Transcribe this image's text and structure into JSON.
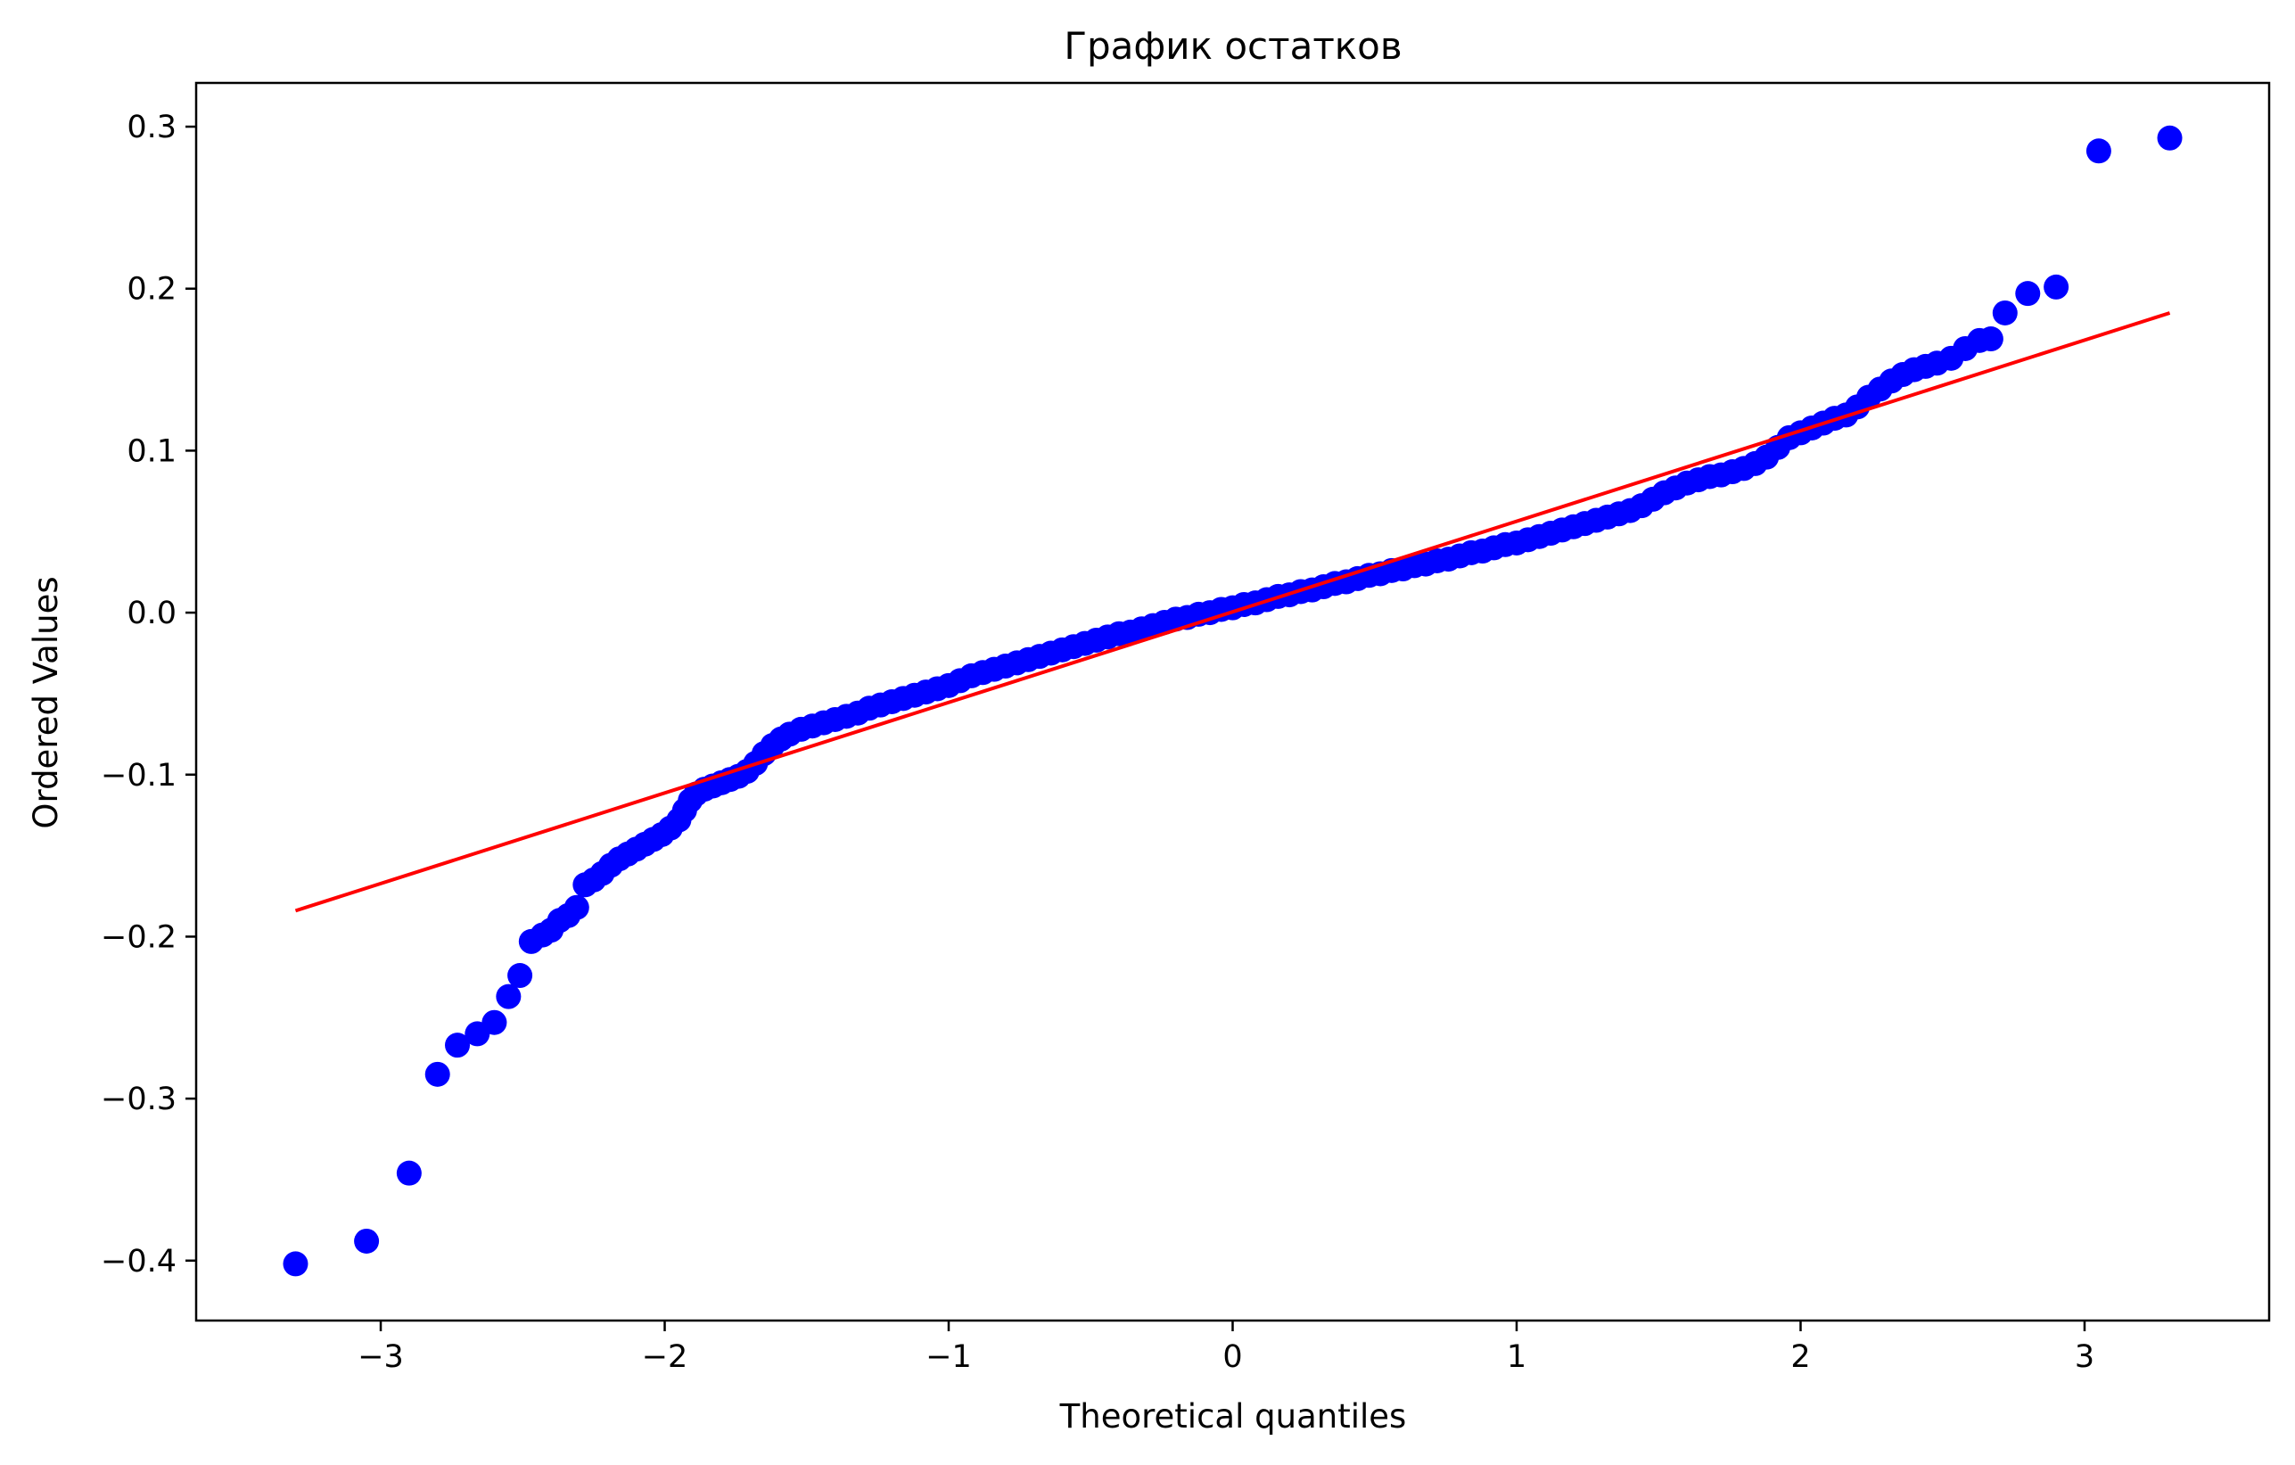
{
  "chart_data": {
    "type": "scatter",
    "title": "График остатков",
    "xlabel": "Theoretical quantiles",
    "ylabel": "Ordered Values",
    "xlim": [
      -3.65,
      3.65
    ],
    "ylim": [
      -0.437,
      0.327
    ],
    "xticks": [
      -3,
      -2,
      -1,
      0,
      1,
      2,
      3
    ],
    "xtick_labels": [
      "−3",
      "−2",
      "−1",
      "0",
      "1",
      "2",
      "3"
    ],
    "yticks": [
      -0.4,
      -0.3,
      -0.2,
      -0.1,
      0.0,
      0.1,
      0.2,
      0.3
    ],
    "ytick_labels": [
      "−0.4",
      "−0.3",
      "−0.2",
      "−0.1",
      "0.0",
      "0.1",
      "0.2",
      "0.3"
    ],
    "grid": false,
    "series": [
      {
        "kind": "points",
        "color": "#0000ff",
        "points": [
          [
            -3.3,
            -0.402
          ],
          [
            -3.05,
            -0.388
          ],
          [
            -2.9,
            -0.346
          ],
          [
            -2.8,
            -0.285
          ],
          [
            -2.73,
            -0.267
          ],
          [
            -2.66,
            -0.26
          ],
          [
            -2.6,
            -0.253
          ],
          [
            -2.55,
            -0.237
          ],
          [
            -2.51,
            -0.224
          ],
          [
            -2.47,
            -0.203
          ],
          [
            -2.43,
            -0.199
          ],
          [
            -2.4,
            -0.196
          ],
          [
            -2.37,
            -0.19
          ],
          [
            -2.34,
            -0.187
          ],
          [
            -2.31,
            -0.182
          ],
          [
            -2.28,
            -0.168
          ],
          [
            -2.25,
            -0.165
          ],
          [
            -2.22,
            -0.161
          ],
          [
            -2.19,
            -0.156
          ],
          [
            -2.16,
            -0.152
          ],
          [
            -2.13,
            -0.149
          ],
          [
            -2.1,
            -0.146
          ],
          [
            -2.07,
            -0.143
          ],
          [
            -2.04,
            -0.14
          ],
          [
            -2.01,
            -0.137
          ],
          [
            -1.98,
            -0.133
          ],
          [
            -1.95,
            -0.128
          ],
          [
            -1.93,
            -0.122
          ],
          [
            -1.91,
            -0.116
          ],
          [
            -1.89,
            -0.112
          ],
          [
            -1.86,
            -0.109
          ],
          [
            -1.83,
            -0.107
          ],
          [
            -1.8,
            -0.105
          ],
          [
            -1.77,
            -0.103
          ],
          [
            -1.74,
            -0.101
          ],
          [
            -1.71,
            -0.098
          ],
          [
            -1.68,
            -0.093
          ],
          [
            -1.65,
            -0.087
          ],
          [
            -1.62,
            -0.082
          ],
          [
            -1.59,
            -0.078
          ],
          [
            -1.56,
            -0.075
          ],
          [
            -1.52,
            -0.072
          ],
          [
            -1.48,
            -0.07
          ],
          [
            -1.44,
            -0.068
          ],
          [
            -1.4,
            -0.066
          ],
          [
            -1.36,
            -0.064
          ],
          [
            -1.32,
            -0.062
          ],
          [
            -1.28,
            -0.059
          ],
          [
            -1.24,
            -0.057
          ],
          [
            -1.2,
            -0.055
          ],
          [
            -1.16,
            -0.053
          ],
          [
            -1.12,
            -0.051
          ],
          [
            -1.08,
            -0.049
          ],
          [
            -1.04,
            -0.047
          ],
          [
            -1.0,
            -0.045
          ],
          [
            -0.96,
            -0.042
          ],
          [
            -0.92,
            -0.039
          ],
          [
            -0.88,
            -0.037
          ],
          [
            -0.84,
            -0.035
          ],
          [
            -0.8,
            -0.033
          ],
          [
            -0.76,
            -0.031
          ],
          [
            -0.72,
            -0.029
          ],
          [
            -0.68,
            -0.027
          ],
          [
            -0.64,
            -0.025
          ],
          [
            -0.6,
            -0.023
          ],
          [
            -0.56,
            -0.021
          ],
          [
            -0.52,
            -0.019
          ],
          [
            -0.48,
            -0.017
          ],
          [
            -0.44,
            -0.015
          ],
          [
            -0.4,
            -0.013
          ],
          [
            -0.36,
            -0.012
          ],
          [
            -0.32,
            -0.01
          ],
          [
            -0.28,
            -0.008
          ],
          [
            -0.24,
            -0.006
          ],
          [
            -0.2,
            -0.004
          ],
          [
            -0.16,
            -0.003
          ],
          [
            -0.12,
            -0.001
          ],
          [
            -0.08,
            0.0
          ],
          [
            -0.04,
            0.002
          ],
          [
            0.0,
            0.003
          ],
          [
            0.04,
            0.005
          ],
          [
            0.08,
            0.006
          ],
          [
            0.12,
            0.008
          ],
          [
            0.16,
            0.01
          ],
          [
            0.2,
            0.011
          ],
          [
            0.24,
            0.013
          ],
          [
            0.28,
            0.014
          ],
          [
            0.32,
            0.016
          ],
          [
            0.36,
            0.018
          ],
          [
            0.4,
            0.019
          ],
          [
            0.44,
            0.021
          ],
          [
            0.48,
            0.023
          ],
          [
            0.52,
            0.024
          ],
          [
            0.56,
            0.026
          ],
          [
            0.6,
            0.027
          ],
          [
            0.64,
            0.029
          ],
          [
            0.68,
            0.03
          ],
          [
            0.72,
            0.032
          ],
          [
            0.76,
            0.033
          ],
          [
            0.8,
            0.035
          ],
          [
            0.84,
            0.037
          ],
          [
            0.88,
            0.038
          ],
          [
            0.92,
            0.04
          ],
          [
            0.96,
            0.042
          ],
          [
            1.0,
            0.043
          ],
          [
            1.04,
            0.045
          ],
          [
            1.08,
            0.047
          ],
          [
            1.12,
            0.049
          ],
          [
            1.16,
            0.051
          ],
          [
            1.2,
            0.053
          ],
          [
            1.24,
            0.055
          ],
          [
            1.28,
            0.057
          ],
          [
            1.32,
            0.059
          ],
          [
            1.36,
            0.061
          ],
          [
            1.4,
            0.063
          ],
          [
            1.44,
            0.066
          ],
          [
            1.48,
            0.07
          ],
          [
            1.52,
            0.074
          ],
          [
            1.56,
            0.077
          ],
          [
            1.6,
            0.08
          ],
          [
            1.64,
            0.082
          ],
          [
            1.68,
            0.084
          ],
          [
            1.72,
            0.085
          ],
          [
            1.76,
            0.087
          ],
          [
            1.8,
            0.089
          ],
          [
            1.84,
            0.092
          ],
          [
            1.88,
            0.096
          ],
          [
            1.92,
            0.102
          ],
          [
            1.96,
            0.108
          ],
          [
            2.0,
            0.111
          ],
          [
            2.04,
            0.114
          ],
          [
            2.08,
            0.117
          ],
          [
            2.12,
            0.12
          ],
          [
            2.16,
            0.122
          ],
          [
            2.2,
            0.127
          ],
          [
            2.24,
            0.133
          ],
          [
            2.28,
            0.138
          ],
          [
            2.32,
            0.143
          ],
          [
            2.36,
            0.147
          ],
          [
            2.4,
            0.15
          ],
          [
            2.44,
            0.152
          ],
          [
            2.48,
            0.154
          ],
          [
            2.53,
            0.157
          ],
          [
            2.58,
            0.163
          ],
          [
            2.63,
            0.168
          ],
          [
            2.67,
            0.169
          ],
          [
            2.72,
            0.185
          ],
          [
            2.8,
            0.197
          ],
          [
            2.9,
            0.201
          ],
          [
            3.05,
            0.285
          ],
          [
            3.3,
            0.293
          ]
        ]
      },
      {
        "kind": "line",
        "color": "#ff0000",
        "points": [
          [
            -3.3,
            -0.184
          ],
          [
            3.3,
            0.185
          ]
        ]
      }
    ]
  }
}
